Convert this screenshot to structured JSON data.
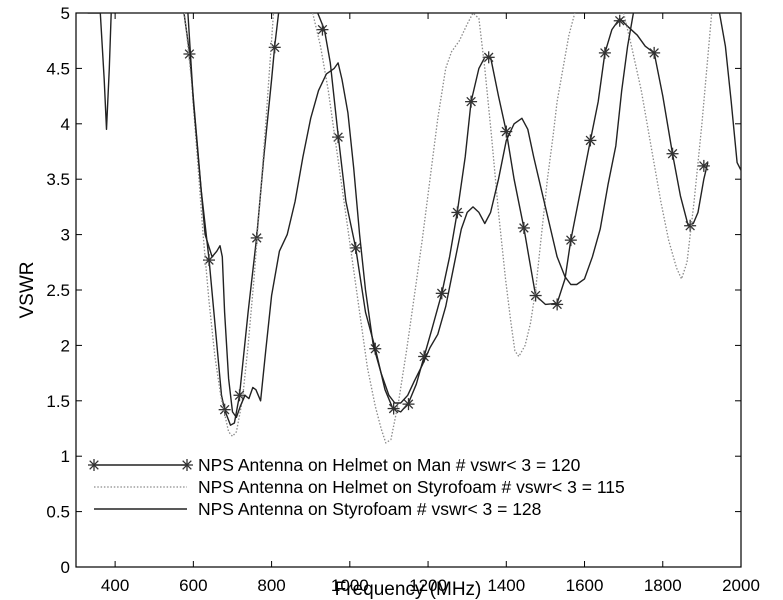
{
  "chart_data": {
    "type": "line",
    "title": "",
    "xlabel": "Frequency (MHz)",
    "ylabel": "VSWR",
    "xlim": [
      300,
      2000
    ],
    "ylim": [
      0,
      5
    ],
    "xticks": [
      400,
      600,
      800,
      1000,
      1200,
      1400,
      1600,
      1800,
      2000
    ],
    "yticks": [
      0,
      0.5,
      1,
      1.5,
      2,
      2.5,
      3,
      3.5,
      4,
      4.5,
      5
    ],
    "grid": false,
    "legend_position": "bottom-left",
    "series": [
      {
        "name": "NPS Antenna on Helmet on Man  # vswr< 3 = 120",
        "style": "solid-star",
        "color": "#222222",
        "points": [
          [
            576,
            5.0
          ],
          [
            590,
            4.65
          ],
          [
            620,
            3.4
          ],
          [
            640,
            2.78
          ],
          [
            655,
            2.2
          ],
          [
            672,
            1.55
          ],
          [
            680,
            1.42
          ],
          [
            695,
            1.28
          ],
          [
            705,
            1.3
          ],
          [
            718,
            1.55
          ],
          [
            740,
            2.3
          ],
          [
            762,
            2.98
          ],
          [
            780,
            3.7
          ],
          [
            800,
            4.4
          ],
          [
            808,
            4.7
          ],
          [
            818,
            5.0
          ]
        ],
        "markers": [
          [
            590,
            4.63
          ],
          [
            640,
            2.77
          ],
          [
            680,
            1.42
          ],
          [
            718,
            1.55
          ],
          [
            762,
            2.97
          ],
          [
            808,
            4.69
          ]
        ]
      },
      {
        "name": "NPS Antenna on Helmet on Man  # vswr< 3 = 120",
        "style": "solid-star",
        "color": "#222222",
        "points": [
          [
            918,
            5.0
          ],
          [
            935,
            4.85
          ],
          [
            950,
            4.55
          ],
          [
            970,
            3.9
          ],
          [
            990,
            3.3
          ],
          [
            1015,
            2.88
          ],
          [
            1040,
            2.3
          ],
          [
            1065,
            1.97
          ],
          [
            1090,
            1.6
          ],
          [
            1110,
            1.43
          ],
          [
            1130,
            1.4
          ],
          [
            1150,
            1.48
          ],
          [
            1170,
            1.65
          ],
          [
            1190,
            1.9
          ],
          [
            1210,
            2.15
          ],
          [
            1235,
            2.47
          ],
          [
            1255,
            2.8
          ],
          [
            1275,
            3.21
          ],
          [
            1295,
            3.7
          ],
          [
            1310,
            4.2
          ],
          [
            1330,
            4.5
          ],
          [
            1345,
            4.6
          ],
          [
            1360,
            4.6
          ],
          [
            1380,
            4.25
          ],
          [
            1400,
            3.93
          ],
          [
            1420,
            3.5
          ],
          [
            1445,
            3.06
          ],
          [
            1460,
            2.75
          ],
          [
            1475,
            2.45
          ],
          [
            1500,
            2.37
          ],
          [
            1530,
            2.38
          ],
          [
            1550,
            2.6
          ],
          [
            1565,
            2.95
          ],
          [
            1590,
            3.4
          ],
          [
            1615,
            3.85
          ],
          [
            1635,
            4.2
          ],
          [
            1652,
            4.64
          ],
          [
            1670,
            4.85
          ],
          [
            1690,
            4.95
          ],
          [
            1710,
            4.88
          ],
          [
            1735,
            4.8
          ],
          [
            1755,
            4.7
          ],
          [
            1778,
            4.64
          ],
          [
            1800,
            4.25
          ],
          [
            1825,
            3.73
          ],
          [
            1845,
            3.35
          ],
          [
            1865,
            3.08
          ],
          [
            1878,
            3.1
          ],
          [
            1890,
            3.2
          ],
          [
            1905,
            3.5
          ],
          [
            1915,
            3.65
          ]
        ],
        "markers": [
          [
            930,
            4.85
          ],
          [
            970,
            3.88
          ],
          [
            1015,
            2.88
          ],
          [
            1065,
            1.97
          ],
          [
            1112,
            1.43
          ],
          [
            1150,
            1.47
          ],
          [
            1190,
            1.9
          ],
          [
            1235,
            2.47
          ],
          [
            1275,
            3.2
          ],
          [
            1310,
            4.2
          ],
          [
            1355,
            4.6
          ],
          [
            1400,
            3.93
          ],
          [
            1445,
            3.06
          ],
          [
            1475,
            2.45
          ],
          [
            1530,
            2.37
          ],
          [
            1565,
            2.95
          ],
          [
            1615,
            3.85
          ],
          [
            1652,
            4.64
          ],
          [
            1690,
            4.93
          ],
          [
            1778,
            4.64
          ],
          [
            1825,
            3.73
          ],
          [
            1870,
            3.08
          ],
          [
            1905,
            3.62
          ]
        ]
      },
      {
        "name": "NPS Antenna on Helmet on Styrofoam  # vswr< 3 = 115",
        "style": "dotted",
        "color": "#888888",
        "points": [
          [
            577,
            5.0
          ],
          [
            595,
            4.4
          ],
          [
            610,
            3.7
          ],
          [
            625,
            3.0
          ],
          [
            640,
            2.4
          ],
          [
            655,
            1.9
          ],
          [
            670,
            1.55
          ],
          [
            682,
            1.35
          ],
          [
            690,
            1.22
          ],
          [
            700,
            1.18
          ],
          [
            710,
            1.22
          ],
          [
            725,
            1.5
          ],
          [
            740,
            2.0
          ],
          [
            755,
            2.6
          ],
          [
            770,
            3.3
          ],
          [
            785,
            4.0
          ],
          [
            795,
            4.5
          ],
          [
            805,
            5.0
          ]
        ],
        "markers": []
      },
      {
        "name": "NPS Antenna on Helmet on Styrofoam  # vswr< 3 = 115",
        "style": "dotted",
        "color": "#888888",
        "points": [
          [
            905,
            5.0
          ],
          [
            925,
            4.7
          ],
          [
            945,
            4.3
          ],
          [
            965,
            3.8
          ],
          [
            985,
            3.3
          ],
          [
            1005,
            2.8
          ],
          [
            1025,
            2.3
          ],
          [
            1045,
            1.8
          ],
          [
            1065,
            1.45
          ],
          [
            1080,
            1.25
          ],
          [
            1092,
            1.12
          ],
          [
            1105,
            1.15
          ],
          [
            1125,
            1.5
          ],
          [
            1145,
            1.95
          ],
          [
            1165,
            2.45
          ],
          [
            1185,
            2.95
          ],
          [
            1205,
            3.5
          ],
          [
            1225,
            4.05
          ],
          [
            1245,
            4.5
          ],
          [
            1260,
            4.65
          ],
          [
            1280,
            4.75
          ],
          [
            1300,
            4.9
          ],
          [
            1315,
            5.0
          ],
          [
            1330,
            4.95
          ],
          [
            1345,
            4.5
          ],
          [
            1362,
            3.9
          ],
          [
            1380,
            3.2
          ],
          [
            1398,
            2.6
          ],
          [
            1412,
            2.2
          ],
          [
            1422,
            1.95
          ],
          [
            1432,
            1.9
          ],
          [
            1448,
            2.0
          ],
          [
            1462,
            2.2
          ],
          [
            1475,
            2.5
          ],
          [
            1490,
            3.0
          ],
          [
            1505,
            3.5
          ],
          [
            1520,
            3.9
          ],
          [
            1530,
            4.2
          ],
          [
            1545,
            4.5
          ],
          [
            1560,
            4.8
          ],
          [
            1575,
            5.0
          ]
        ],
        "markers": []
      },
      {
        "name": "NPS Antenna on Helmet on Styrofoam  # vswr< 3 = 115",
        "style": "dotted",
        "color": "#888888",
        "points": [
          [
            1700,
            5.0
          ],
          [
            1720,
            4.7
          ],
          [
            1745,
            4.3
          ],
          [
            1770,
            3.8
          ],
          [
            1795,
            3.3
          ],
          [
            1815,
            2.95
          ],
          [
            1835,
            2.7
          ],
          [
            1848,
            2.6
          ],
          [
            1862,
            2.75
          ],
          [
            1880,
            3.3
          ],
          [
            1900,
            4.0
          ],
          [
            1915,
            4.6
          ],
          [
            1925,
            5.0
          ]
        ],
        "markers": []
      },
      {
        "name": "NPS Antenna on Styrofoam  # vswr< 3 = 128",
        "style": "solid",
        "color": "#2a2a2a",
        "points": [
          [
            330,
            5.0
          ],
          [
            362,
            5.0
          ],
          [
            372,
            4.4
          ],
          [
            378,
            3.95
          ],
          [
            385,
            4.5
          ],
          [
            390,
            5.0
          ]
        ],
        "markers": []
      },
      {
        "name": "NPS Antenna on Styrofoam  # vswr< 3 = 128",
        "style": "solid",
        "color": "#2a2a2a",
        "points": [
          [
            586,
            5.0
          ],
          [
            600,
            4.2
          ],
          [
            615,
            3.6
          ],
          [
            630,
            3.0
          ],
          [
            648,
            2.8
          ],
          [
            660,
            2.85
          ],
          [
            668,
            2.9
          ],
          [
            674,
            2.8
          ],
          [
            680,
            2.3
          ],
          [
            690,
            1.7
          ],
          [
            700,
            1.4
          ],
          [
            710,
            1.35
          ],
          [
            720,
            1.45
          ],
          [
            732,
            1.55
          ],
          [
            742,
            1.52
          ],
          [
            752,
            1.62
          ],
          [
            760,
            1.6
          ],
          [
            772,
            1.5
          ],
          [
            785,
            1.95
          ],
          [
            800,
            2.45
          ],
          [
            820,
            2.85
          ],
          [
            840,
            3.0
          ],
          [
            860,
            3.3
          ],
          [
            880,
            3.7
          ],
          [
            900,
            4.05
          ],
          [
            920,
            4.3
          ],
          [
            940,
            4.45
          ],
          [
            960,
            4.5
          ],
          [
            970,
            4.55
          ],
          [
            980,
            4.4
          ],
          [
            995,
            4.1
          ],
          [
            1010,
            3.6
          ],
          [
            1025,
            3.0
          ],
          [
            1040,
            2.5
          ],
          [
            1060,
            2.0
          ],
          [
            1080,
            1.75
          ],
          [
            1100,
            1.55
          ],
          [
            1115,
            1.48
          ],
          [
            1130,
            1.48
          ],
          [
            1148,
            1.55
          ],
          [
            1165,
            1.68
          ],
          [
            1185,
            1.82
          ],
          [
            1205,
            1.98
          ],
          [
            1225,
            2.1
          ],
          [
            1245,
            2.35
          ],
          [
            1265,
            2.7
          ],
          [
            1285,
            3.05
          ],
          [
            1300,
            3.2
          ],
          [
            1315,
            3.25
          ],
          [
            1330,
            3.2
          ],
          [
            1345,
            3.1
          ],
          [
            1360,
            3.2
          ],
          [
            1380,
            3.5
          ],
          [
            1400,
            3.85
          ],
          [
            1420,
            4.0
          ],
          [
            1440,
            4.05
          ],
          [
            1455,
            3.95
          ],
          [
            1470,
            3.7
          ],
          [
            1490,
            3.4
          ],
          [
            1510,
            3.1
          ],
          [
            1530,
            2.8
          ],
          [
            1550,
            2.62
          ],
          [
            1565,
            2.55
          ],
          [
            1580,
            2.55
          ],
          [
            1600,
            2.6
          ],
          [
            1620,
            2.8
          ],
          [
            1640,
            3.05
          ],
          [
            1660,
            3.45
          ],
          [
            1680,
            3.8
          ],
          [
            1695,
            4.3
          ],
          [
            1710,
            4.7
          ],
          [
            1725,
            5.0
          ]
        ],
        "markers": []
      },
      {
        "name": "NPS Antenna on Styrofoam  # vswr< 3 = 128",
        "style": "solid",
        "color": "#2a2a2a",
        "points": [
          [
            1945,
            5.0
          ],
          [
            1960,
            4.7
          ],
          [
            1975,
            4.2
          ],
          [
            1990,
            3.65
          ],
          [
            2000,
            3.58
          ]
        ],
        "markers": []
      }
    ],
    "legend": [
      {
        "label": "NPS Antenna on Helmet on Man  # vswr< 3 = 120",
        "style": "solid-star"
      },
      {
        "label": "NPS Antenna on Helmet on Styrofoam  # vswr< 3 = 115",
        "style": "dotted"
      },
      {
        "label": "NPS Antenna on Styrofoam  # vswr< 3 = 128",
        "style": "solid"
      }
    ]
  }
}
